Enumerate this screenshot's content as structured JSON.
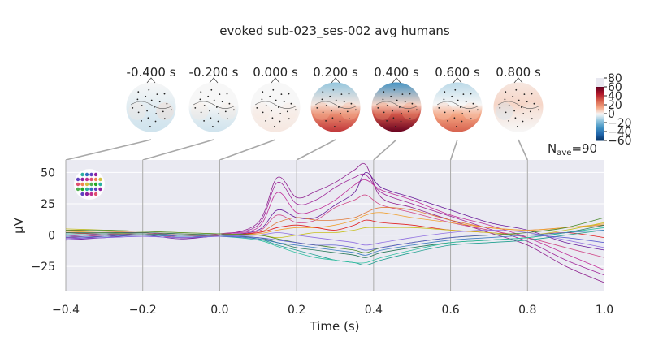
{
  "figure": {
    "title": "evoked sub-023_ses-002 avg humans",
    "nave_label": "N",
    "nave_subscript": "ave",
    "nave_value": "=90"
  },
  "topomaps": {
    "times": [
      "-0.400 s",
      "-0.200 s",
      "0.000 s",
      "0.200 s",
      "0.400 s",
      "0.600 s",
      "0.800 s"
    ],
    "time_values": [
      -0.4,
      -0.2,
      0.0,
      0.2,
      0.4,
      0.6,
      0.8
    ],
    "colorbar": {
      "ticks": [
        "80",
        "60",
        "40",
        "20",
        "0",
        "−20",
        "−40",
        "−60"
      ],
      "tick_values": [
        80,
        60,
        40,
        20,
        0,
        -20,
        -40,
        -60
      ],
      "vlim": [
        -60,
        80
      ],
      "cmap": [
        "#053061",
        "#2166ac",
        "#4393c3",
        "#92c5de",
        "#f7f7f7",
        "#f4a582",
        "#d6604d",
        "#b2182b",
        "#67001f"
      ]
    },
    "scalp_maps": [
      {
        "front": 0.0,
        "back": -0.1,
        "left": 0.05,
        "right": 0.1,
        "center": -0.05
      },
      {
        "front": 0.0,
        "back": -0.1,
        "left": 0.05,
        "right": 0.05,
        "center": 0.0
      },
      {
        "front": 0.0,
        "back": 0.05,
        "left": 0.05,
        "right": 0.05,
        "center": 0.0
      },
      {
        "front": -0.25,
        "back": 0.65,
        "left": 0.2,
        "right": 0.2,
        "center": 0.05
      },
      {
        "front": -0.5,
        "back": 1.0,
        "left": 0.3,
        "right": 0.3,
        "center": 0.1
      },
      {
        "front": -0.15,
        "back": 0.5,
        "left": 0.15,
        "right": 0.1,
        "center": 0.0
      },
      {
        "front": 0.05,
        "back": 0.0,
        "left": -0.1,
        "right": 0.05,
        "center": 0.1
      }
    ]
  },
  "chart_data": {
    "type": "line",
    "xlabel": "Time (s)",
    "ylabel": "µV",
    "xlim": [
      -0.4,
      1.0
    ],
    "ylim": [
      -45,
      60
    ],
    "xticks": [
      "−0.4",
      "−0.2",
      "0.0",
      "0.2",
      "0.4",
      "0.6",
      "0.8",
      "1.0"
    ],
    "xtick_values": [
      -0.4,
      -0.2,
      0.0,
      0.2,
      0.4,
      0.6,
      0.8,
      1.0
    ],
    "yticks": [
      "50",
      "25",
      "0",
      "−25"
    ],
    "ytick_values": [
      50,
      25,
      0,
      -25
    ],
    "grid": true,
    "x": [
      -0.4,
      -0.3,
      -0.2,
      -0.1,
      0.0,
      0.1,
      0.15,
      0.2,
      0.25,
      0.3,
      0.35,
      0.38,
      0.42,
      0.5,
      0.6,
      0.7,
      0.8,
      0.9,
      1.0
    ],
    "series": [
      {
        "color": "#8e1f8e",
        "values": [
          -3,
          -1,
          1,
          -2,
          0,
          10,
          46,
          30,
          35,
          42,
          52,
          56,
          30,
          22,
          12,
          2,
          -8,
          -25,
          -38
        ]
      },
      {
        "color": "#a0289a",
        "values": [
          -2,
          0,
          2,
          -1,
          1,
          8,
          42,
          25,
          28,
          38,
          46,
          48,
          34,
          25,
          15,
          5,
          -5,
          -20,
          -32
        ]
      },
      {
        "color": "#c0309a",
        "values": [
          -1,
          1,
          2,
          0,
          1,
          6,
          34,
          18,
          20,
          28,
          40,
          44,
          36,
          28,
          16,
          8,
          -2,
          -15,
          -28
        ]
      },
      {
        "color": "#6a1b9a",
        "values": [
          -4,
          -2,
          0,
          -3,
          0,
          4,
          20,
          14,
          14,
          24,
          34,
          50,
          38,
          30,
          20,
          10,
          4,
          -6,
          -12
        ]
      },
      {
        "color": "#d04a8a",
        "values": [
          -2,
          0,
          1,
          -2,
          0,
          3,
          16,
          10,
          12,
          22,
          28,
          32,
          24,
          18,
          10,
          4,
          -2,
          -10,
          -18
        ]
      },
      {
        "color": "#e07a3a",
        "values": [
          4,
          3,
          2,
          1,
          0,
          2,
          10,
          14,
          12,
          12,
          14,
          18,
          22,
          20,
          12,
          6,
          4,
          6,
          8
        ]
      },
      {
        "color": "#f0a030",
        "values": [
          3,
          2,
          1,
          0,
          0,
          1,
          4,
          6,
          6,
          8,
          12,
          16,
          18,
          14,
          10,
          6,
          4,
          6,
          9
        ]
      },
      {
        "color": "#e02020",
        "values": [
          2,
          1,
          1,
          0,
          0,
          2,
          6,
          8,
          6,
          4,
          8,
          12,
          10,
          8,
          4,
          2,
          0,
          2,
          -2
        ]
      },
      {
        "color": "#c8c020",
        "values": [
          5,
          4,
          3,
          2,
          1,
          0,
          -2,
          0,
          2,
          2,
          4,
          6,
          6,
          6,
          4,
          2,
          0,
          4,
          10
        ]
      },
      {
        "color": "#4a8a2a",
        "values": [
          4,
          4,
          3,
          2,
          1,
          0,
          -3,
          -6,
          -8,
          -10,
          -12,
          -14,
          -10,
          -6,
          -2,
          0,
          2,
          6,
          14
        ]
      },
      {
        "color": "#2a7a5a",
        "values": [
          2,
          2,
          2,
          1,
          0,
          -2,
          -6,
          -10,
          -12,
          -14,
          -16,
          -18,
          -14,
          -10,
          -6,
          -4,
          -2,
          2,
          8
        ]
      },
      {
        "color": "#20a090",
        "values": [
          1,
          1,
          1,
          0,
          0,
          -3,
          -8,
          -12,
          -16,
          -20,
          -22,
          -24,
          -20,
          -14,
          -8,
          -6,
          -4,
          0,
          4
        ]
      },
      {
        "color": "#30c0a0",
        "values": [
          0,
          0,
          0,
          -1,
          -1,
          -4,
          -9,
          -14,
          -18,
          -20,
          -22,
          -22,
          -18,
          -12,
          -6,
          -4,
          -2,
          2,
          6
        ]
      },
      {
        "color": "#4080c0",
        "values": [
          -1,
          -1,
          0,
          -1,
          -1,
          -3,
          -6,
          -8,
          -10,
          -12,
          -14,
          -16,
          -12,
          -8,
          -4,
          -2,
          0,
          2,
          4
        ]
      },
      {
        "color": "#6060d0",
        "values": [
          -2,
          -2,
          -1,
          -2,
          -1,
          -2,
          -4,
          -6,
          -8,
          -8,
          -10,
          -12,
          -10,
          -6,
          -2,
          0,
          0,
          -2,
          -6
        ]
      },
      {
        "color": "#9070e0",
        "values": [
          -3,
          -2,
          -1,
          -2,
          -1,
          0,
          2,
          0,
          -2,
          -4,
          -6,
          -8,
          -6,
          -2,
          2,
          4,
          2,
          -4,
          -10
        ]
      }
    ]
  }
}
